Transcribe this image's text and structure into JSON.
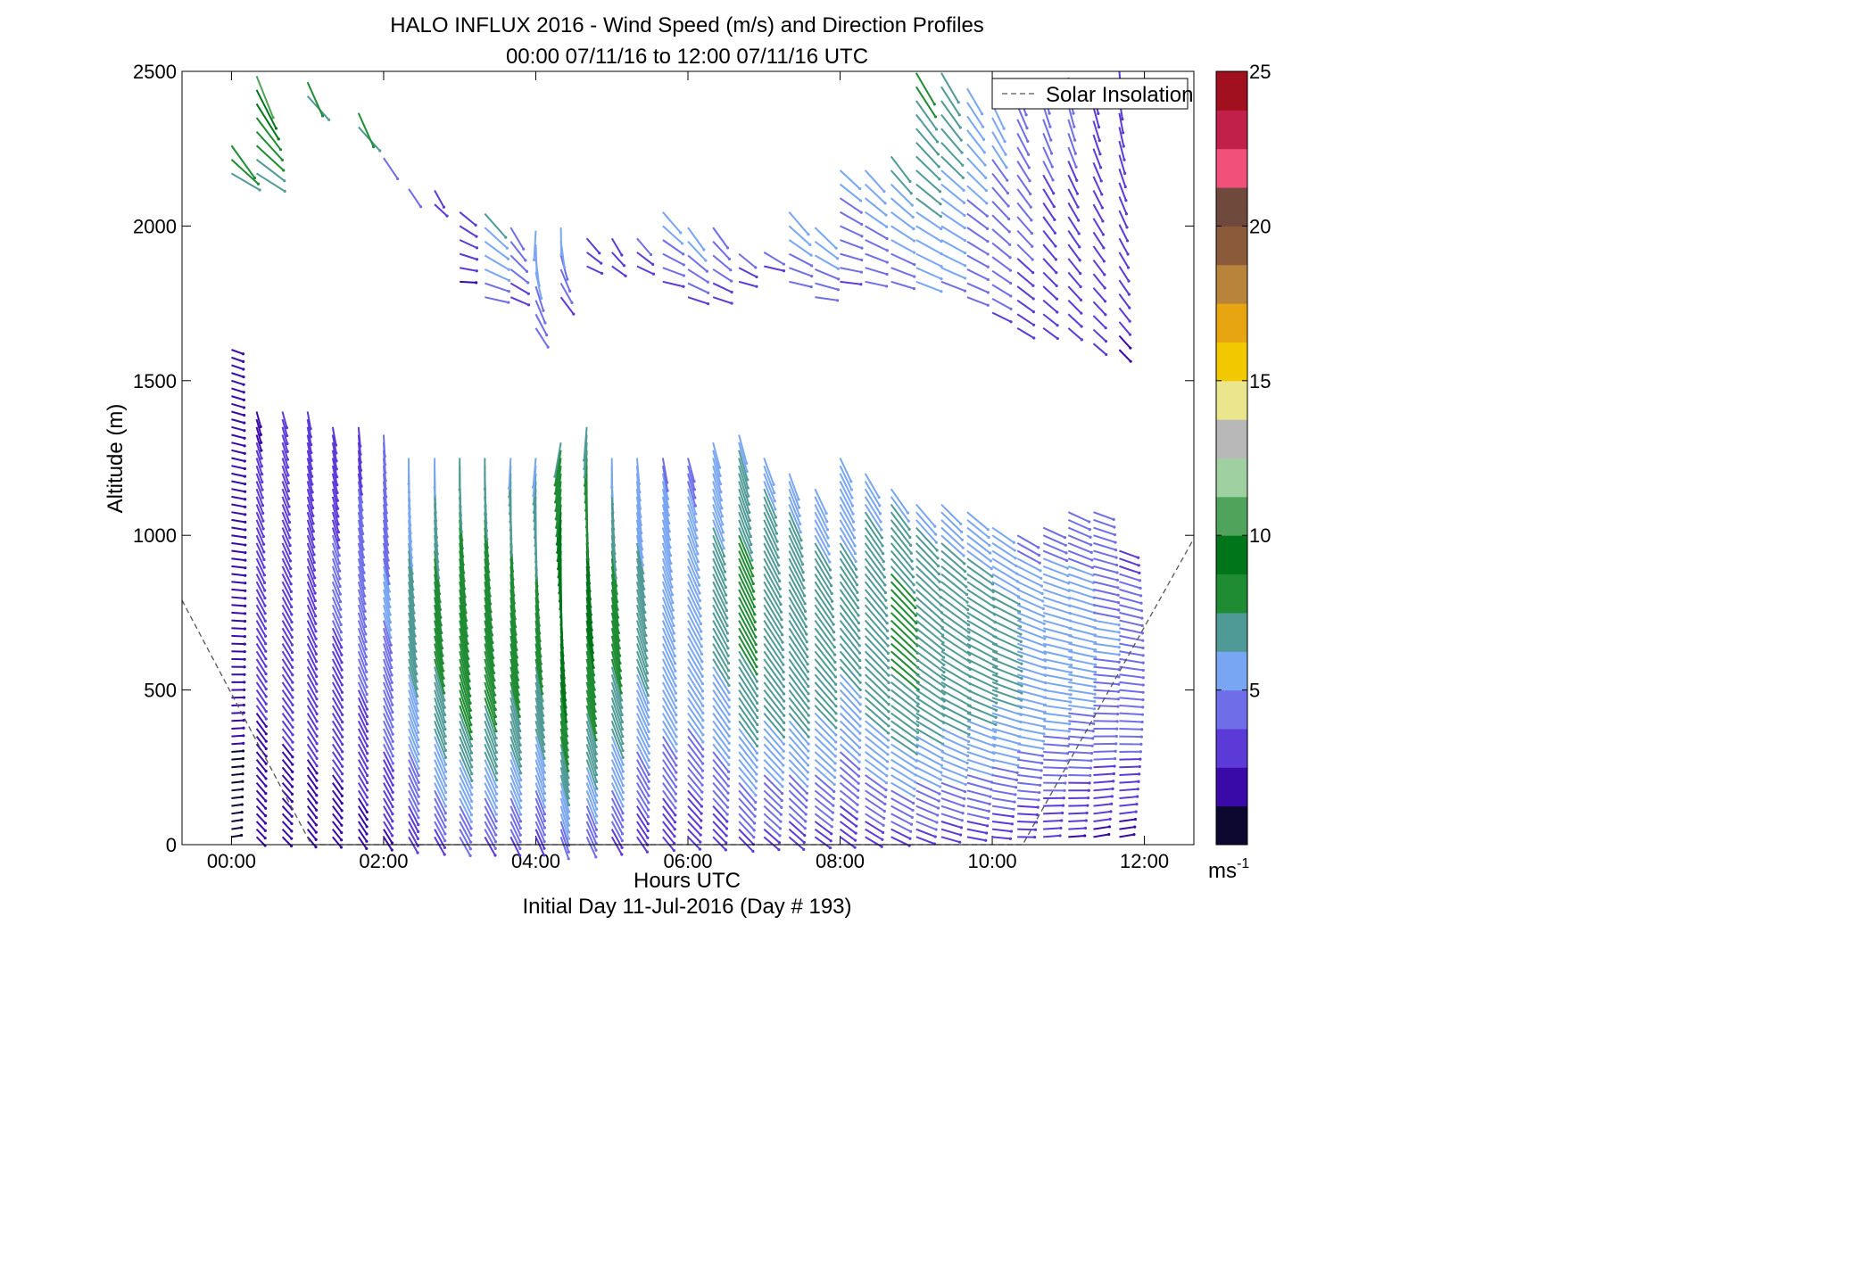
{
  "chart_data": {
    "type": "wind-barb-profile",
    "title": "HALO INFLUX 2016 - Wind Speed (m/s) and Direction Profiles",
    "subtitle": "00:00 07/11/16 to 12:00 07/11/16  UTC",
    "xlabel": "Hours UTC",
    "xlabel2": "Initial Day 11-Jul-2016 (Day # 193)",
    "ylabel": "Altitude (m)",
    "xlim_hours": [
      -0.65,
      12.65
    ],
    "ylim": [
      0,
      2500
    ],
    "x_ticks": [
      {
        "value": 0,
        "label": "00:00"
      },
      {
        "value": 2,
        "label": "02:00"
      },
      {
        "value": 4,
        "label": "04:00"
      },
      {
        "value": 6,
        "label": "06:00"
      },
      {
        "value": 8,
        "label": "08:00"
      },
      {
        "value": 10,
        "label": "10:00"
      },
      {
        "value": 12,
        "label": "12:00"
      }
    ],
    "y_ticks": [
      0,
      500,
      1000,
      1500,
      2000,
      2500
    ],
    "legend": {
      "entries": [
        "Solar Insolation"
      ],
      "placement": "top-right"
    },
    "colorbar": {
      "range": [
        0,
        25
      ],
      "ticks": [
        5,
        10,
        15,
        20,
        25
      ],
      "unit_label": "ms",
      "unit_exponent": "-1",
      "colors": [
        "#0d0830",
        "#3a0aa8",
        "#5b3ad8",
        "#6f6ee8",
        "#79a6f2",
        "#4f9a96",
        "#1f8c34",
        "#00751a",
        "#4fa35a",
        "#9fd0a2",
        "#b8b8b8",
        "#ebe68e",
        "#f2c800",
        "#e8a512",
        "#b8843c",
        "#8a5a3a",
        "#6f4a3c",
        "#f0507a",
        "#c0204a",
        "#a0101e"
      ]
    },
    "solar_insolation": [
      {
        "x": -0.65,
        "y": 790
      },
      {
        "x": 1.05,
        "y": 0
      },
      {
        "x": 10.4,
        "y": 0
      },
      {
        "x": 12.65,
        "y": 990
      }
    ],
    "profiles": [
      {
        "t": 0.0,
        "lo": 0,
        "hi": 1620,
        "s": 1.5,
        "d": 95
      },
      {
        "t": 0.33,
        "lo": 0,
        "hi": 1410,
        "s": 2.5,
        "d": 150
      },
      {
        "t": 0.67,
        "lo": 0,
        "hi": 1410,
        "s": 2.8,
        "d": 150
      },
      {
        "t": 1.0,
        "lo": 0,
        "hi": 1410,
        "s": 3.0,
        "d": 155
      },
      {
        "t": 1.33,
        "lo": 0,
        "hi": 1370,
        "s": 3.2,
        "d": 155
      },
      {
        "t": 1.67,
        "lo": 0,
        "hi": 1360,
        "s": 3.5,
        "d": 160
      },
      {
        "t": 2.0,
        "lo": 0,
        "hi": 1330,
        "s": 4.2,
        "d": 162
      },
      {
        "t": 2.33,
        "lo": 0,
        "hi": 1250,
        "s": 5.5,
        "d": 165
      },
      {
        "t": 2.67,
        "lo": 0,
        "hi": 1250,
        "s": 6.5,
        "d": 165
      },
      {
        "t": 3.0,
        "lo": 0,
        "hi": 1250,
        "s": 7.2,
        "d": 165
      },
      {
        "t": 3.33,
        "lo": 0,
        "hi": 1250,
        "s": 7.0,
        "d": 165
      },
      {
        "t": 3.67,
        "lo": 0,
        "hi": 1250,
        "s": 6.8,
        "d": 168
      },
      {
        "t": 4.0,
        "lo": 0,
        "hi": 1250,
        "s": 6.5,
        "d": 170
      },
      {
        "t": 4.33,
        "lo": 0,
        "hi": 1300,
        "s": 8.0,
        "d": 175
      },
      {
        "t": 4.67,
        "lo": 0,
        "hi": 1370,
        "s": 7.5,
        "d": 170
      },
      {
        "t": 5.0,
        "lo": 0,
        "hi": 1250,
        "s": 6.5,
        "d": 165
      },
      {
        "t": 5.33,
        "lo": 0,
        "hi": 1250,
        "s": 5.5,
        "d": 160
      },
      {
        "t": 5.67,
        "lo": 0,
        "hi": 1250,
        "s": 5.2,
        "d": 155
      },
      {
        "t": 6.0,
        "lo": 0,
        "hi": 1250,
        "s": 5.0,
        "d": 150
      },
      {
        "t": 6.33,
        "lo": 0,
        "hi": 1300,
        "s": 5.5,
        "d": 150
      },
      {
        "t": 6.67,
        "lo": 0,
        "hi": 1330,
        "s": 6.5,
        "d": 150
      },
      {
        "t": 7.0,
        "lo": 0,
        "hi": 1250,
        "s": 6.2,
        "d": 145
      },
      {
        "t": 7.33,
        "lo": 0,
        "hi": 1200,
        "s": 6.0,
        "d": 145
      },
      {
        "t": 7.67,
        "lo": 0,
        "hi": 1150,
        "s": 5.8,
        "d": 140
      },
      {
        "t": 8.0,
        "lo": 0,
        "hi": 1250,
        "s": 5.5,
        "d": 140
      },
      {
        "t": 8.33,
        "lo": 0,
        "hi": 1200,
        "s": 6.0,
        "d": 135
      },
      {
        "t": 8.67,
        "lo": 0,
        "hi": 1150,
        "s": 6.5,
        "d": 130
      },
      {
        "t": 9.0,
        "lo": 0,
        "hi": 1120,
        "s": 6.2,
        "d": 125
      },
      {
        "t": 9.33,
        "lo": 0,
        "hi": 1100,
        "s": 6.0,
        "d": 120
      },
      {
        "t": 9.67,
        "lo": 0,
        "hi": 1080,
        "s": 5.8,
        "d": 115
      },
      {
        "t": 10.0,
        "lo": 0,
        "hi": 1040,
        "s": 5.5,
        "d": 110
      },
      {
        "t": 10.33,
        "lo": 0,
        "hi": 1000,
        "s": 5.0,
        "d": 105
      },
      {
        "t": 10.67,
        "lo": 0,
        "hi": 1040,
        "s": 4.8,
        "d": 100
      },
      {
        "t": 11.0,
        "lo": 0,
        "hi": 1080,
        "s": 4.6,
        "d": 100
      },
      {
        "t": 11.33,
        "lo": 0,
        "hi": 1080,
        "s": 4.2,
        "d": 95
      },
      {
        "t": 11.67,
        "lo": 0,
        "hi": 950,
        "s": 3.8,
        "d": 95
      }
    ],
    "upper_profiles": [
      {
        "t": 0.0,
        "lo": 2150,
        "hi": 2300,
        "s": 8.0,
        "d": 135
      },
      {
        "t": 0.33,
        "lo": 2150,
        "hi": 2500,
        "s": 8.5,
        "d": 140
      },
      {
        "t": 1.0,
        "lo": 2400,
        "hi": 2500,
        "s": 7.5,
        "d": 150
      },
      {
        "t": 1.67,
        "lo": 2300,
        "hi": 2400,
        "s": 7.5,
        "d": 150
      },
      {
        "t": 2.0,
        "lo": 2200,
        "hi": 2250,
        "s": 5.0,
        "d": 150
      },
      {
        "t": 2.33,
        "lo": 2100,
        "hi": 2150,
        "s": 4.0,
        "d": 150
      },
      {
        "t": 2.67,
        "lo": 2050,
        "hi": 2150,
        "s": 3.0,
        "d": 145
      },
      {
        "t": 3.0,
        "lo": 1800,
        "hi": 2050,
        "s": 3.0,
        "d": 110
      },
      {
        "t": 3.33,
        "lo": 1750,
        "hi": 2050,
        "s": 5.5,
        "d": 120
      },
      {
        "t": 3.67,
        "lo": 1750,
        "hi": 2000,
        "s": 4.0,
        "d": 130
      },
      {
        "t": 4.0,
        "lo": 1650,
        "hi": 2000,
        "s": 5.0,
        "d": 165
      },
      {
        "t": 4.33,
        "lo": 1750,
        "hi": 2000,
        "s": 4.5,
        "d": 160
      },
      {
        "t": 4.67,
        "lo": 1850,
        "hi": 2000,
        "s": 3.0,
        "d": 130
      },
      {
        "t": 5.0,
        "lo": 1850,
        "hi": 2000,
        "s": 3.0,
        "d": 140
      },
      {
        "t": 5.33,
        "lo": 1850,
        "hi": 2000,
        "s": 3.5,
        "d": 130
      },
      {
        "t": 5.67,
        "lo": 1800,
        "hi": 2050,
        "s": 4.5,
        "d": 120
      },
      {
        "t": 6.0,
        "lo": 1750,
        "hi": 2000,
        "s": 4.5,
        "d": 125
      },
      {
        "t": 6.33,
        "lo": 1750,
        "hi": 2000,
        "s": 4.0,
        "d": 125
      },
      {
        "t": 6.67,
        "lo": 1800,
        "hi": 1950,
        "s": 3.5,
        "d": 120
      },
      {
        "t": 7.0,
        "lo": 1850,
        "hi": 1950,
        "s": 4.0,
        "d": 115
      },
      {
        "t": 7.33,
        "lo": 1800,
        "hi": 2050,
        "s": 5.0,
        "d": 120
      },
      {
        "t": 7.67,
        "lo": 1750,
        "hi": 2000,
        "s": 5.0,
        "d": 115
      },
      {
        "t": 8.0,
        "lo": 1800,
        "hi": 2200,
        "s": 4.5,
        "d": 115
      },
      {
        "t": 8.33,
        "lo": 1800,
        "hi": 2200,
        "s": 4.8,
        "d": 120
      },
      {
        "t": 8.67,
        "lo": 1800,
        "hi": 2250,
        "s": 5.5,
        "d": 125
      },
      {
        "t": 9.0,
        "lo": 1800,
        "hi": 2500,
        "s": 6.5,
        "d": 130
      },
      {
        "t": 9.33,
        "lo": 1800,
        "hi": 2500,
        "s": 6.0,
        "d": 130
      },
      {
        "t": 9.67,
        "lo": 1750,
        "hi": 2450,
        "s": 5.0,
        "d": 130
      },
      {
        "t": 10.0,
        "lo": 1700,
        "hi": 2400,
        "s": 4.5,
        "d": 135
      },
      {
        "t": 10.33,
        "lo": 1650,
        "hi": 2450,
        "s": 4.0,
        "d": 140
      },
      {
        "t": 10.67,
        "lo": 1650,
        "hi": 2450,
        "s": 3.5,
        "d": 145
      },
      {
        "t": 11.0,
        "lo": 1650,
        "hi": 2500,
        "s": 3.5,
        "d": 150
      },
      {
        "t": 11.33,
        "lo": 1600,
        "hi": 2500,
        "s": 3.2,
        "d": 150
      },
      {
        "t": 11.67,
        "lo": 1580,
        "hi": 2500,
        "s": 3.0,
        "d": 155
      }
    ]
  }
}
